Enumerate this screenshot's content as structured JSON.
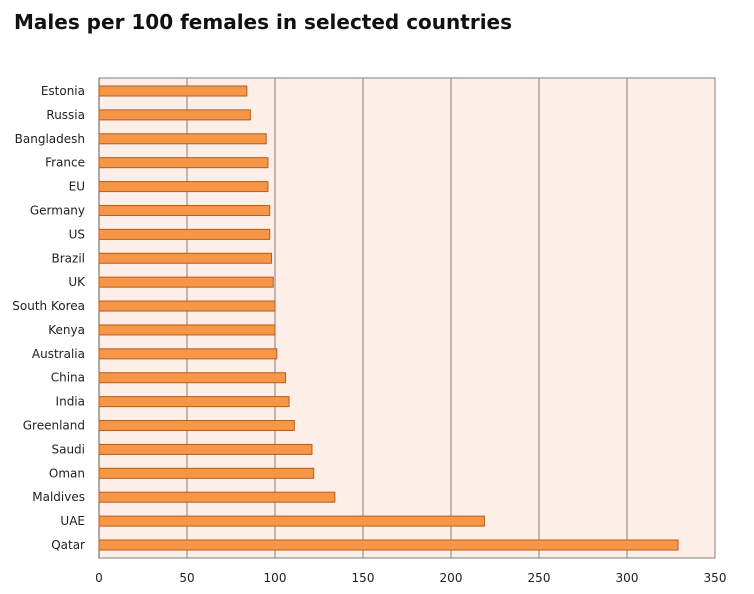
{
  "chart_data": {
    "type": "bar",
    "orientation": "horizontal",
    "title": "Males per 100 females in selected countries",
    "xlabel": "",
    "ylabel": "",
    "categories": [
      "Estonia",
      "Russia",
      "Bangladesh",
      "France",
      "EU",
      "Germany",
      "US",
      "Brazil",
      "UK",
      "South Korea",
      "Kenya",
      "Australia",
      "China",
      "India",
      "Greenland",
      "Saudi",
      "Oman",
      "Maldives",
      "UAE",
      "Qatar"
    ],
    "values": [
      84,
      86,
      95,
      96,
      96,
      97,
      97,
      98,
      99,
      100,
      100,
      101,
      106,
      108,
      111,
      121,
      122,
      134,
      219,
      329
    ],
    "xlim": [
      0,
      350
    ],
    "xticks": [
      0,
      50,
      100,
      150,
      200,
      250,
      300,
      350
    ],
    "grid": "vertical",
    "legend": "none",
    "colors": {
      "bar_fill": "#f79646",
      "bar_stroke": "#b75d1c",
      "plot_background": "#fdeee8",
      "gridline": "#7f7f7f"
    }
  }
}
